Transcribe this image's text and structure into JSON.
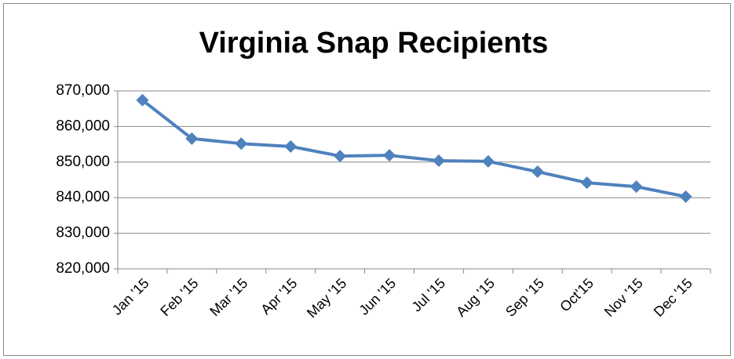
{
  "chart_data": {
    "type": "line",
    "title": "Virginia Snap Recipients",
    "categories": [
      "Jan '15",
      "Feb '15",
      "Mar '15",
      "Apr '15",
      "May '15",
      "Jun '15",
      "Jul '15",
      "Aug '15",
      "Sep '15",
      "Oct'15",
      "Nov '15",
      "Dec '15"
    ],
    "values": [
      867400,
      856600,
      855200,
      854400,
      851700,
      851900,
      850400,
      850200,
      847300,
      844200,
      843100,
      840300
    ],
    "color": "#4f81bd",
    "ylim": [
      820000,
      870000
    ],
    "yticks": [
      {
        "value": 820000,
        "label": "820,000"
      },
      {
        "value": 830000,
        "label": "830,000"
      },
      {
        "value": 840000,
        "label": "840,000"
      },
      {
        "value": 850000,
        "label": "850,000"
      },
      {
        "value": 860000,
        "label": "860,000"
      },
      {
        "value": 870000,
        "label": "870,000"
      }
    ],
    "grid": true
  }
}
